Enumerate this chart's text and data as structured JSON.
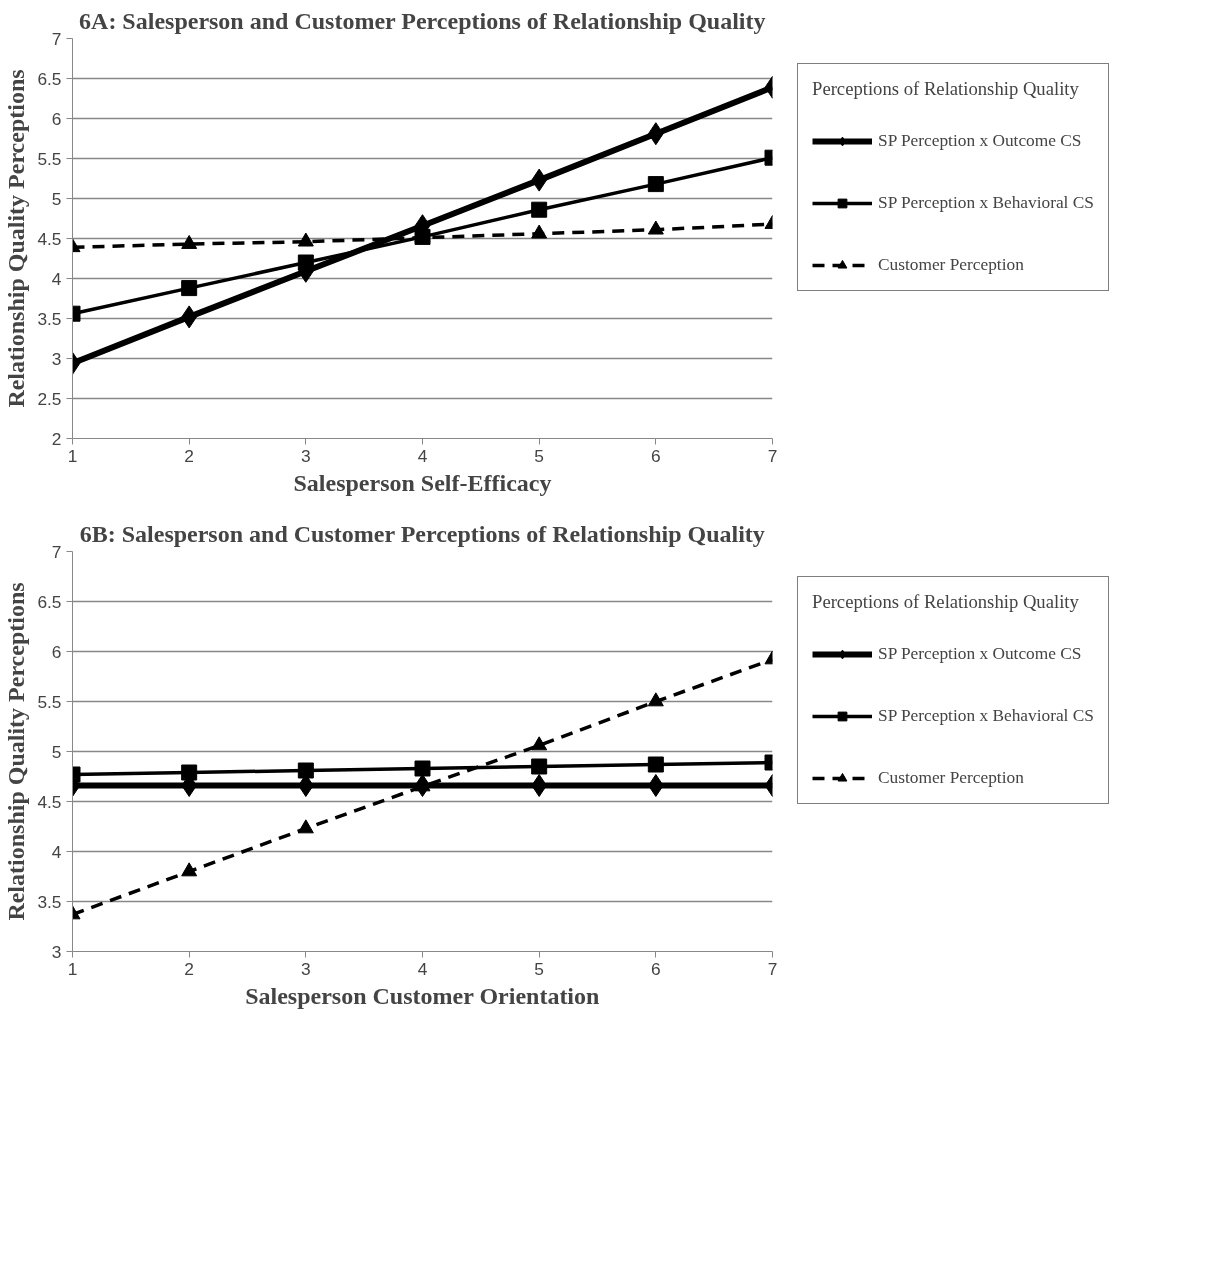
{
  "chart_data": [
    {
      "type": "line",
      "title": "6A: Salesperson and Customer Perceptions of Relationship Quality",
      "xlabel": "Salesperson Self-Efficacy",
      "ylabel": "Relationship Quality Perceptions",
      "legend_title": "Perceptions of Relationship Quality",
      "x": [
        1,
        2,
        3,
        4,
        5,
        6,
        7
      ],
      "xlim": [
        1,
        7
      ],
      "xticks": [
        1,
        2,
        3,
        4,
        5,
        6,
        7
      ],
      "ylim": [
        2,
        7
      ],
      "yticks": [
        2,
        2.5,
        3,
        3.5,
        4,
        4.5,
        5,
        5.5,
        6,
        6.5,
        7
      ],
      "grid": "y",
      "legend": "right",
      "series": [
        {
          "name": "SP Perception x Outcome CS",
          "color": "#000000",
          "marker": "diamond",
          "line_style": "solid",
          "values": [
            2.94,
            3.52,
            4.09,
            4.66,
            5.23,
            5.81,
            6.39
          ]
        },
        {
          "name": "SP Perception x Behavioral CS",
          "color": "#000000",
          "marker": "square",
          "line_style": "solid",
          "values": [
            3.56,
            3.88,
            4.2,
            4.52,
            4.86,
            5.18,
            5.51
          ]
        },
        {
          "name": "Customer Perception",
          "color": "#000000",
          "marker": "triangle",
          "line_style": "dashed",
          "values": [
            4.39,
            4.43,
            4.46,
            4.51,
            4.56,
            4.61,
            4.68
          ]
        }
      ]
    },
    {
      "type": "line",
      "title": "6B: Salesperson and Customer Perceptions of Relationship Quality",
      "xlabel": "Salesperson Customer Orientation",
      "ylabel": "Relationship Quality Perceptions",
      "legend_title": "Perceptions of Relationship Quality",
      "x": [
        1,
        2,
        3,
        4,
        5,
        6,
        7
      ],
      "xlim": [
        1,
        7
      ],
      "xticks": [
        1,
        2,
        3,
        4,
        5,
        6,
        7
      ],
      "ylim": [
        3,
        7
      ],
      "yticks": [
        3,
        3.5,
        4,
        4.5,
        5,
        5.5,
        6,
        6.5,
        7
      ],
      "grid": "y",
      "legend": "right",
      "series": [
        {
          "name": "SP Perception x Outcome CS",
          "color": "#000000",
          "marker": "diamond",
          "line_style": "solid",
          "values": [
            4.66,
            4.66,
            4.66,
            4.66,
            4.66,
            4.66,
            4.66
          ]
        },
        {
          "name": "SP Perception x Behavioral CS",
          "color": "#000000",
          "marker": "square",
          "line_style": "solid",
          "values": [
            4.77,
            4.79,
            4.81,
            4.83,
            4.85,
            4.87,
            4.89
          ]
        },
        {
          "name": "Customer Perception",
          "color": "#000000",
          "marker": "triangle",
          "line_style": "dashed",
          "values": [
            3.37,
            3.8,
            4.23,
            4.65,
            5.06,
            5.5,
            5.92
          ]
        }
      ]
    }
  ]
}
